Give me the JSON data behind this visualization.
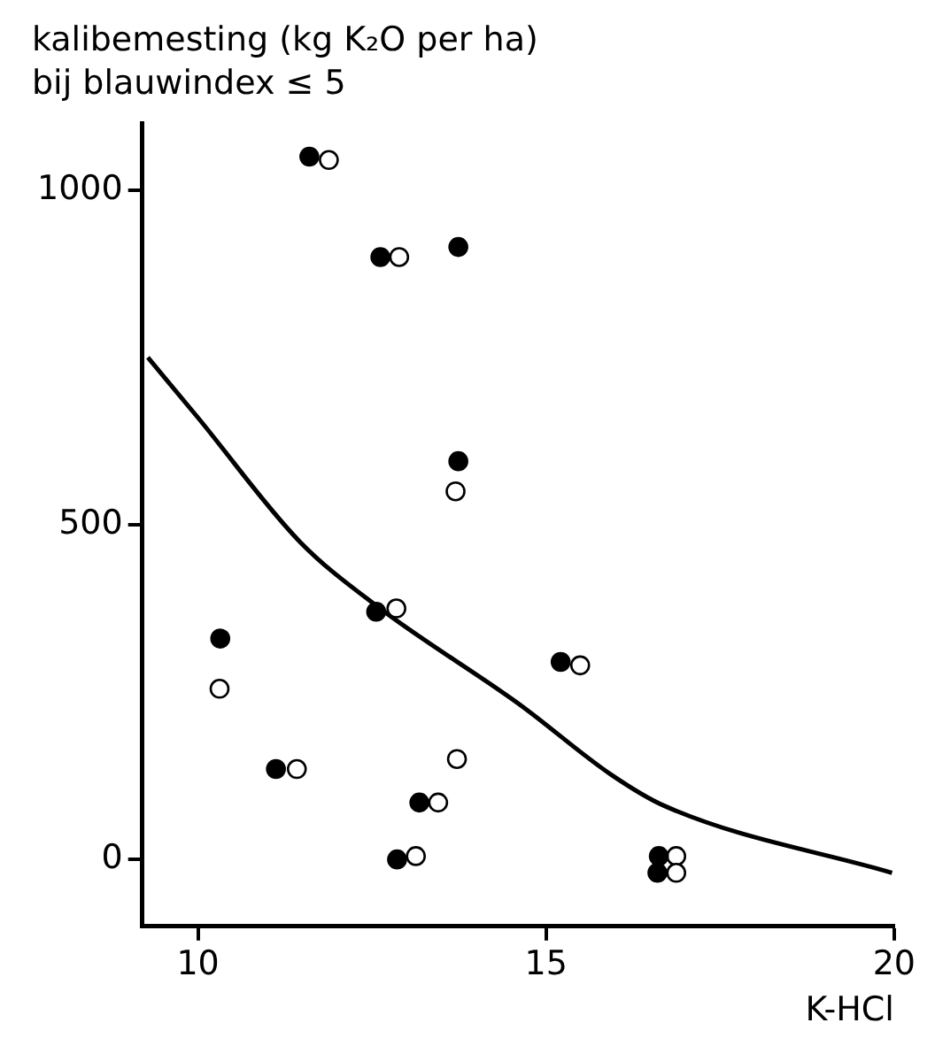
{
  "chart_data": {
    "type": "scatter",
    "title": "kalibemesting (kg K₂O per ha)",
    "subtitle": "bij blauwindex ≤ 5",
    "xlabel": "K-HCl",
    "xlim": [
      9.2,
      20
    ],
    "xticks": [
      10,
      15,
      20
    ],
    "ylim": [
      -100,
      1100
    ],
    "yticks": [
      0,
      500,
      1000
    ],
    "grid": false,
    "marker": "circle",
    "series": [
      {
        "color": "#000000",
        "x": [
          11.6,
          12.62,
          13.74,
          13.74,
          12.56,
          10.32,
          11.12,
          13.18,
          12.86,
          15.21,
          16.62,
          16.6
        ],
        "values": [
          1050,
          900,
          915,
          595,
          370,
          330,
          135,
          85,
          0,
          295,
          5,
          -20
        ]
      },
      {
        "color": "#ffffff",
        "x": [
          11.88,
          12.89,
          13.7,
          12.85,
          10.31,
          11.42,
          13.72,
          13.45,
          13.13,
          15.49,
          16.87,
          16.87
        ],
        "values": [
          1045,
          900,
          550,
          375,
          255,
          135,
          150,
          85,
          5,
          290,
          5,
          -20
        ]
      },
      {
        "type": "line",
        "marker": "none",
        "color": "#000000",
        "x": [
          9.28,
          10.0,
          11.46,
          12.55,
          14.64,
          15.93,
          16.7,
          19.97
        ],
        "values": [
          750,
          660,
          475,
          380,
          230,
          127,
          80,
          -20
        ]
      }
    ]
  }
}
